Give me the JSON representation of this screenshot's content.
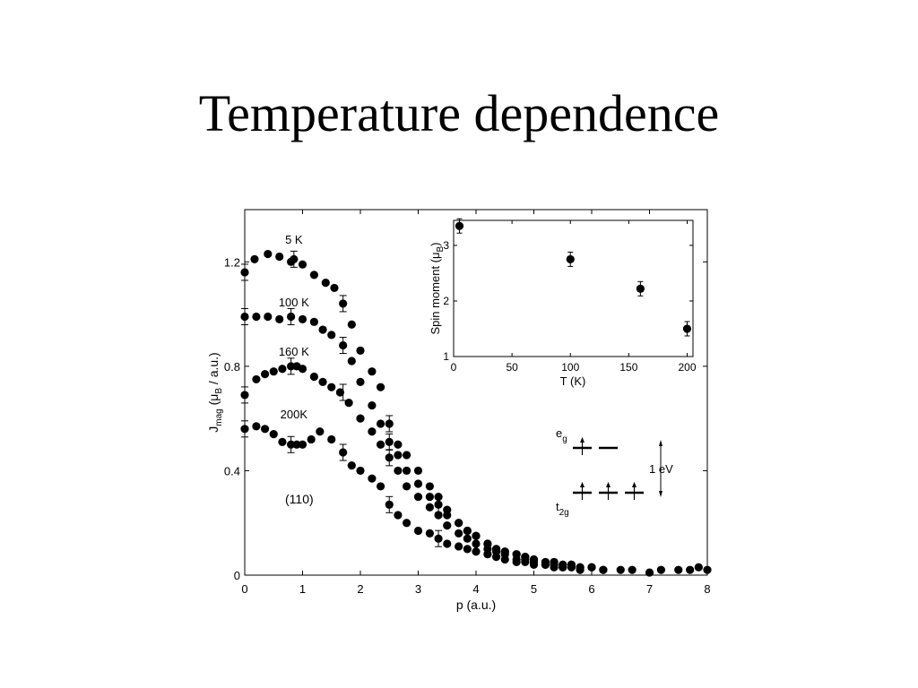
{
  "slide": {
    "title": "Temperature dependence"
  },
  "chart_data": [
    {
      "type": "scatter",
      "xlabel": "p (a.u.)",
      "ylabel_main": "J",
      "ylabel_sub": "mag",
      "ylabel_rest_a": " (μ",
      "ylabel_sub2": "B",
      "ylabel_rest_b": " / a.u.)",
      "xlim": [
        0,
        8
      ],
      "ylim": [
        0,
        1.4
      ],
      "xticks": [
        0,
        1,
        2,
        3,
        4,
        5,
        6,
        7,
        8
      ],
      "yticks": [
        0,
        0.4,
        0.8,
        1.2
      ],
      "ytick_labels": [
        "0",
        "0.4",
        "0.8",
        "1.2"
      ],
      "annotation": "(110)",
      "series": [
        {
          "name": "5 K",
          "x": [
            0.0,
            0.17,
            0.4,
            0.6,
            0.8,
            0.85,
            1.0,
            1.2,
            1.4,
            1.55,
            1.7,
            1.85,
            2.0,
            2.2,
            2.35,
            2.5,
            2.65,
            2.8,
            3.0,
            3.2,
            3.35,
            3.5,
            3.7,
            3.85,
            4.0,
            4.2,
            4.35,
            4.5,
            4.7,
            4.85,
            5.0,
            5.2,
            5.35,
            5.5,
            5.65,
            5.8,
            6.0,
            6.2,
            6.5,
            6.7,
            7.0,
            7.2,
            7.5,
            7.7,
            7.85,
            8.0
          ],
          "y": [
            1.16,
            1.21,
            1.23,
            1.22,
            1.2,
            1.21,
            1.19,
            1.15,
            1.12,
            1.1,
            1.04,
            0.96,
            0.86,
            0.78,
            0.72,
            0.58,
            0.5,
            0.46,
            0.4,
            0.34,
            0.3,
            0.25,
            0.2,
            0.17,
            0.15,
            0.12,
            0.1,
            0.09,
            0.08,
            0.07,
            0.06,
            0.05,
            0.05,
            0.04,
            0.04,
            0.03,
            0.03,
            0.02,
            0.02,
            0.02,
            0.01,
            0.02,
            0.02,
            0.02,
            0.03,
            0.02
          ]
        },
        {
          "name": "100 K",
          "x": [
            0.0,
            0.2,
            0.4,
            0.6,
            0.8,
            1.0,
            1.2,
            1.35,
            1.5,
            1.7,
            1.85,
            2.0,
            2.2,
            2.35,
            2.5,
            2.65,
            2.8,
            3.0,
            3.2,
            3.35,
            3.5,
            3.7,
            3.85,
            4.0,
            4.2,
            4.35,
            4.5,
            4.7,
            4.85,
            5.0,
            5.2,
            5.35,
            5.5,
            5.65,
            5.8,
            6.0,
            6.2
          ],
          "y": [
            0.99,
            0.99,
            0.99,
            0.98,
            0.99,
            0.98,
            0.97,
            0.94,
            0.92,
            0.88,
            0.82,
            0.74,
            0.65,
            0.58,
            0.51,
            0.46,
            0.4,
            0.35,
            0.3,
            0.27,
            0.23,
            0.2,
            0.17,
            0.15,
            0.12,
            0.1,
            0.09,
            0.08,
            0.07,
            0.06,
            0.05,
            0.05,
            0.04,
            0.04,
            0.03,
            0.03,
            0.02
          ]
        },
        {
          "name": "160 K",
          "x": [
            0.0,
            0.2,
            0.35,
            0.5,
            0.65,
            0.8,
            0.9,
            1.0,
            1.2,
            1.35,
            1.5,
            1.65,
            1.8,
            2.0,
            2.2,
            2.35,
            2.5,
            2.65,
            2.8,
            3.0,
            3.2,
            3.35,
            3.5,
            3.7,
            3.85,
            4.0,
            4.2,
            4.35,
            4.5,
            4.7,
            4.85,
            5.0,
            5.2,
            5.35,
            5.5,
            5.65,
            5.8
          ],
          "y": [
            0.69,
            0.75,
            0.77,
            0.78,
            0.79,
            0.8,
            0.8,
            0.79,
            0.76,
            0.74,
            0.72,
            0.7,
            0.66,
            0.6,
            0.55,
            0.5,
            0.45,
            0.4,
            0.34,
            0.3,
            0.26,
            0.23,
            0.19,
            0.16,
            0.14,
            0.12,
            0.1,
            0.09,
            0.08,
            0.06,
            0.06,
            0.05,
            0.04,
            0.04,
            0.03,
            0.03,
            0.02
          ]
        },
        {
          "name": "200K",
          "x": [
            0.0,
            0.2,
            0.35,
            0.5,
            0.65,
            0.8,
            0.9,
            1.0,
            1.15,
            1.3,
            1.5,
            1.7,
            1.85,
            2.0,
            2.2,
            2.35,
            2.5,
            2.65,
            2.8,
            3.0,
            3.2,
            3.35,
            3.5,
            3.7,
            3.85,
            4.0,
            4.2,
            4.35,
            4.5,
            4.7,
            4.85,
            5.0,
            5.2,
            5.35,
            5.5
          ],
          "y": [
            0.56,
            0.57,
            0.56,
            0.54,
            0.51,
            0.5,
            0.5,
            0.5,
            0.52,
            0.55,
            0.52,
            0.47,
            0.42,
            0.4,
            0.37,
            0.34,
            0.27,
            0.23,
            0.2,
            0.17,
            0.16,
            0.14,
            0.12,
            0.11,
            0.1,
            0.09,
            0.08,
            0.07,
            0.06,
            0.05,
            0.05,
            0.04,
            0.04,
            0.03,
            0.03
          ]
        }
      ],
      "series_label_positions": "left, above each curve",
      "inset_level_diagram": {
        "upper_level_label": "e",
        "upper_level_sub": "g",
        "lower_level_label": "t",
        "lower_level_sub": "2g",
        "gap_label": "1 eV"
      }
    },
    {
      "type": "scatter",
      "role": "inset",
      "xlabel": "T (K)",
      "ylabel_main": "Spin moment (μ",
      "ylabel_sub": "B",
      "ylabel_end": ")",
      "xlim": [
        0,
        205
      ],
      "ylim": [
        1,
        3.45
      ],
      "xticks": [
        0,
        50,
        100,
        150,
        200
      ],
      "yticks": [
        1,
        2,
        3
      ],
      "series": [
        {
          "x": [
            5,
            100,
            160,
            200
          ],
          "y": [
            3.35,
            2.75,
            2.22,
            1.5
          ]
        }
      ]
    }
  ]
}
